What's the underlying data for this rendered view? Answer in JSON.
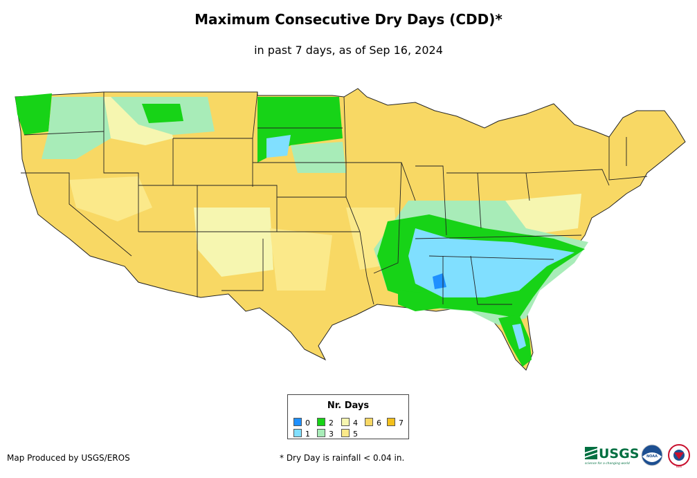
{
  "title": "Maximum Consecutive Dry Days (CDD)*",
  "subtitle": "in past 7 days, as of Sep 16, 2024",
  "legend": {
    "title": "Nr. Days",
    "items": [
      {
        "label": "0",
        "color": "#1e90ff"
      },
      {
        "label": "1",
        "color": "#80dfff"
      },
      {
        "label": "2",
        "color": "#17d317"
      },
      {
        "label": "3",
        "color": "#a8ecb8"
      },
      {
        "label": "4",
        "color": "#f6f6b0"
      },
      {
        "label": "5",
        "color": "#fbe98a"
      },
      {
        "label": "6",
        "color": "#f8d864"
      },
      {
        "label": "7",
        "color": "#f3c01c"
      }
    ]
  },
  "footer": {
    "produced_by": "Map Produced by USGS/EROS",
    "note": "* Dry Day is rainfall < 0.04 in."
  },
  "logos": {
    "usgs": "USGS",
    "usgs_tagline": "science for a changing world",
    "noaa": "NOAA",
    "nws": "NWS"
  },
  "map": {
    "background_color": "#f8d864",
    "state_border_color": "#222222"
  }
}
